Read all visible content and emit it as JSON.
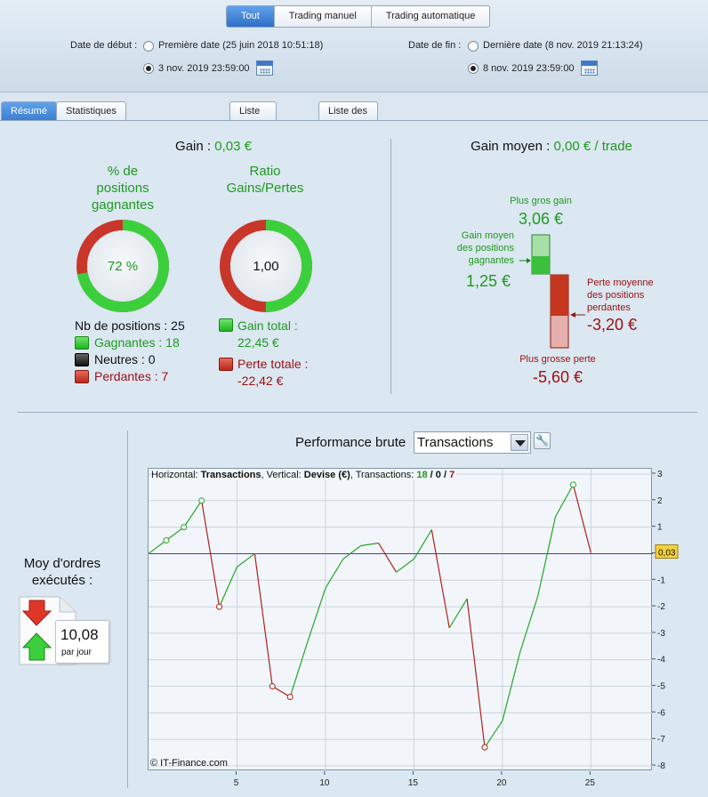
{
  "header": {
    "segments": [
      {
        "label": "Tout",
        "active": true
      },
      {
        "label": "Trading manuel",
        "active": false
      },
      {
        "label": "Trading automatique",
        "active": false
      }
    ],
    "start_label": "Date de début :",
    "start_first_option": "Première date (25 juin 2018 10:51:18)",
    "start_selected": "3 nov. 2019 23:59:00",
    "end_label": "Date de fin :",
    "end_last_option": "Dernière date (8 nov. 2019 21:13:24)",
    "end_selected": "8 nov. 2019 23:59:00"
  },
  "tabs": [
    {
      "label": "Résumé",
      "active": true
    },
    {
      "label": "Statistiques des positions clôturées",
      "active": false
    },
    {
      "label": "Liste des ordres",
      "active": false
    },
    {
      "label": "Liste des positions clôturées",
      "active": false
    }
  ],
  "summary": {
    "gain_label": "Gain :",
    "gain_value": "0,03 €",
    "win_pct_title_1": "% de",
    "win_pct_title_2": "positions",
    "win_pct_title_3": "gagnantes",
    "win_pct_value": "72 %",
    "win_fraction": 0.72,
    "ratio_title_1": "Ratio",
    "ratio_title_2": "Gains/Pertes",
    "ratio_value": "1,00",
    "nb_positions": "Nb de positions : 25",
    "gagnantes": "Gagnantes : 18",
    "neutres": "Neutres : 0",
    "perdantes": "Perdantes : 7",
    "gain_total_label": "Gain total :",
    "gain_total_value": "22,45 €",
    "perte_totale_label": "Perte totale :",
    "perte_totale_value": "-22,42 €"
  },
  "average": {
    "label": "Gain moyen :",
    "value": "0,00 € / trade",
    "plus_gros_gain_label": "Plus gros gain",
    "plus_gros_gain_value": "3,06 €",
    "gain_moyen_label_1": "Gain moyen",
    "gain_moyen_label_2": "des positions",
    "gain_moyen_label_3": "gagnantes",
    "gain_moyen_value": "1,25 €",
    "perte_moyenne_label_1": "Perte moyenne",
    "perte_moyenne_label_2": "des positions",
    "perte_moyenne_label_3": "perdantes",
    "perte_moyenne_value": "-3,20 €",
    "plus_grosse_perte_label": "Plus grosse perte",
    "plus_grosse_perte_value": "-5,60 €"
  },
  "orders": {
    "title_1": "Moy d'ordres",
    "title_2": "exécutés :",
    "value": "10,08",
    "unit": "par jour"
  },
  "performance": {
    "title": "Performance brute",
    "select_value": "Transactions",
    "info_prefix": "Horizontal: ",
    "info_h": "Transactions",
    "info_mid": ", Vertical: ",
    "info_v": "Devise (€)",
    "info_tx": ", Transactions: ",
    "info_win": "18",
    "info_sep1": " / ",
    "info_neutral": "0",
    "info_sep2": " / ",
    "info_loss": "7",
    "copyright": "© IT-Finance.com",
    "last_value_label": "0,03"
  },
  "colors": {
    "win": "#1f9a1f",
    "loss": "#9b1010",
    "zero_line": "#3a3ad0",
    "accent": "#3b7dd0"
  },
  "chart_data": {
    "type": "line",
    "x": [
      0,
      1,
      2,
      3,
      4,
      5,
      6,
      7,
      8,
      9,
      10,
      11,
      12,
      13,
      14,
      15,
      16,
      17,
      18,
      19,
      20,
      21,
      22,
      23,
      24,
      25
    ],
    "y": [
      0,
      0.5,
      1.0,
      2.0,
      -2.0,
      -0.5,
      0.0,
      -5.0,
      -5.4,
      -3.3,
      -1.3,
      -0.2,
      0.3,
      0.4,
      -0.7,
      -0.2,
      0.9,
      -2.8,
      -1.7,
      -7.3,
      -6.3,
      -3.7,
      -1.6,
      1.4,
      2.6,
      0.03
    ],
    "x_ticks": [
      "5",
      "10",
      "15",
      "20",
      "25"
    ],
    "y_ticks": [
      "3",
      "2",
      "1",
      "0",
      "-1",
      "-2",
      "-3",
      "-4",
      "-5",
      "-6",
      "-7",
      "-8"
    ],
    "xlim": [
      0,
      28.5
    ],
    "ylim": [
      -8.2,
      3.2
    ],
    "grid": true
  }
}
